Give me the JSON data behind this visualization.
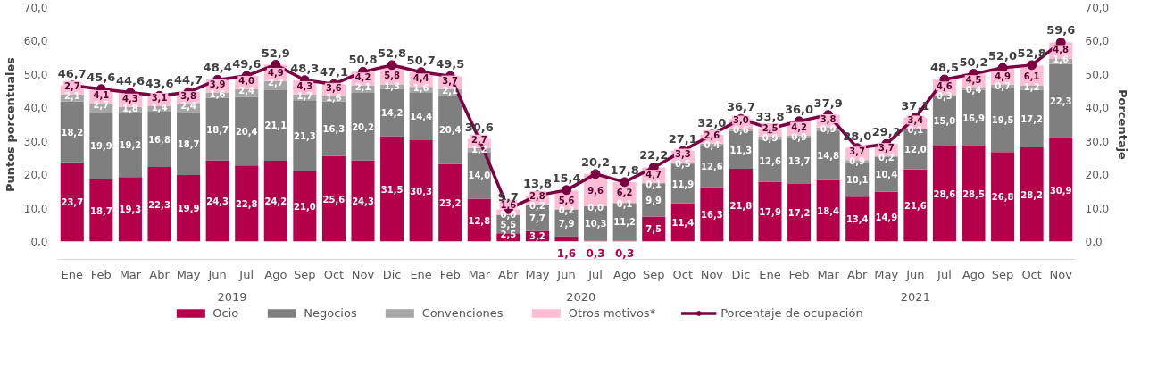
{
  "chart_data": {
    "type": "bar",
    "stacked": true,
    "data_labels": true,
    "legend": "bottom",
    "grid": false,
    "ylabel": "Puntos porcentuales",
    "y2label": "Porcentaje",
    "categories": [
      "Ene",
      "Feb",
      "Mar",
      "Abr",
      "May",
      "Jun",
      "Jul",
      "Ago",
      "Sep",
      "Oct",
      "Nov",
      "Dic",
      "Ene",
      "Feb",
      "Mar",
      "Abr",
      "May",
      "Jun",
      "Jul",
      "Ago",
      "Sep",
      "Oct",
      "Nov",
      "Dic",
      "Ene",
      "Feb",
      "Mar",
      "Abr",
      "May",
      "Jun",
      "Jul",
      "Ago",
      "Sep",
      "Oct",
      "Nov"
    ],
    "annotations": [
      "2019",
      "2020",
      "2021"
    ],
    "ylim": [
      0,
      70
    ],
    "yticks": [
      {
        "value": 0,
        "label": "0,0"
      },
      {
        "value": 10,
        "label": "10,0"
      },
      {
        "value": 20,
        "label": "20,0"
      },
      {
        "value": 30,
        "label": "30,0"
      },
      {
        "value": 40,
        "label": "40,0"
      },
      {
        "value": 50,
        "label": "50,0"
      },
      {
        "value": 60,
        "label": "60,0"
      },
      {
        "value": 70,
        "label": "70,0"
      }
    ],
    "y2lim": [
      0,
      70
    ],
    "y2ticks": [
      {
        "value": 0,
        "label": "0,0"
      },
      {
        "value": 10,
        "label": "10,0"
      },
      {
        "value": 20,
        "label": "20,0"
      },
      {
        "value": 30,
        "label": "30,0"
      },
      {
        "value": 40,
        "label": "40,0"
      },
      {
        "value": 50,
        "label": "50,0"
      },
      {
        "value": 60,
        "label": "60,0"
      },
      {
        "value": 70,
        "label": "70,0"
      }
    ],
    "series": [
      {
        "name": "Ocio",
        "color": "#b4004b",
        "values": [
          23.7,
          18.7,
          19.3,
          22.3,
          19.9,
          24.3,
          22.8,
          24.2,
          21.0,
          25.6,
          24.3,
          31.5,
          30.3,
          23.2,
          12.8,
          2.5,
          3.2,
          1.6,
          0.3,
          0.3,
          7.5,
          11.4,
          16.3,
          21.8,
          17.9,
          17.2,
          18.4,
          13.4,
          14.9,
          21.6,
          28.6,
          28.5,
          26.8,
          28.2,
          30.9
        ],
        "value_labels": [
          "23,7",
          "18,7",
          "19,3",
          "22,3",
          "19,9",
          "24,3",
          "22,8",
          "24,2",
          "21,0",
          "25,6",
          "24,3",
          "31,5",
          "30,3",
          "23,2",
          "12,8",
          "2,5",
          "3,2",
          "1,6",
          "0,3",
          "0,3",
          "7,5",
          "11,4",
          "16,3",
          "21,8",
          "17,9",
          "17,2",
          "18,4",
          "13,4",
          "14,9",
          "21,6",
          "28,6",
          "28,5",
          "26,8",
          "28,2",
          "30,9"
        ]
      },
      {
        "name": "Negocios",
        "color": "#7f7f7f",
        "values": [
          18.2,
          19.9,
          19.2,
          16.8,
          18.7,
          18.7,
          20.4,
          21.1,
          21.3,
          16.3,
          20.2,
          14.2,
          14.4,
          20.4,
          14.0,
          5.5,
          7.7,
          7.9,
          10.3,
          11.2,
          9.9,
          11.9,
          12.6,
          11.3,
          12.6,
          13.7,
          14.8,
          10.1,
          10.4,
          12.0,
          15.0,
          16.9,
          19.5,
          17.2,
          22.3
        ],
        "value_labels": [
          "18,2",
          "19,9",
          "19,2",
          "16,8",
          "18,7",
          "18,7",
          "20,4",
          "21,1",
          "21,3",
          "16,3",
          "20,2",
          "14,2",
          "14,4",
          "20,4",
          "14,0",
          "5,5",
          "7,7",
          "7,9",
          "10,3",
          "11,2",
          "9,9",
          "11,9",
          "12,6",
          "11,3",
          "12,6",
          "13,7",
          "14,8",
          "10,1",
          "10,4",
          "12,0",
          "15,0",
          "16,9",
          "19,5",
          "17,2",
          "22,3"
        ]
      },
      {
        "name": "Convenciones",
        "color": "#a6a6a6",
        "values": [
          2.1,
          2.7,
          1.8,
          1.4,
          2.4,
          1.6,
          2.4,
          2.7,
          1.7,
          1.6,
          2.1,
          1.3,
          1.6,
          2.1,
          1.2,
          0.0,
          0.2,
          0.2,
          0.0,
          0.1,
          0.1,
          0.5,
          0.4,
          0.6,
          0.9,
          0.9,
          0.9,
          0.9,
          0.2,
          0.1,
          0.3,
          0.4,
          0.7,
          1.2,
          1.6
        ],
        "value_labels": [
          "2,1",
          "2,7",
          "1,8",
          "1,4",
          "2,4",
          "1,6",
          "2,4",
          "2,7",
          "1,7",
          "1,6",
          "2,1",
          "1,3",
          "1,6",
          "2,1",
          "1,2",
          "0,0",
          "0,2",
          "0,2",
          "0,0",
          "0,1",
          "0,1",
          "0,5",
          "0,4",
          "0,6",
          "0,9",
          "0,9",
          "0,9",
          "0,9",
          "0,2",
          "0,1",
          "0,3",
          "0,4",
          "0,7",
          "1,2",
          "1,6"
        ]
      },
      {
        "name": "Otros motivos*",
        "color": "#ffbdd5",
        "values": [
          2.7,
          4.1,
          4.3,
          3.1,
          3.8,
          3.9,
          4.0,
          4.9,
          4.3,
          3.6,
          4.2,
          5.8,
          4.4,
          3.7,
          2.7,
          1.6,
          2.8,
          5.6,
          9.6,
          6.2,
          4.7,
          3.3,
          2.6,
          3.0,
          2.5,
          4.2,
          3.8,
          3.7,
          3.7,
          3.4,
          4.6,
          4.5,
          4.9,
          6.1,
          4.8
        ],
        "value_labels": [
          "2,7",
          "4,1",
          "4,3",
          "3,1",
          "3,8",
          "3,9",
          "4,0",
          "4,9",
          "4,3",
          "3,6",
          "4,2",
          "5,8",
          "4,4",
          "3,7",
          "2,7",
          "1,6",
          "2,8",
          "5,6",
          "9,6",
          "6,2",
          "4,7",
          "3,3",
          "2,6",
          "3,0",
          "2,5",
          "4,2",
          "3,8",
          "3,7",
          "3,7",
          "3,4",
          "4,6",
          "4,5",
          "4,9",
          "6,1",
          "4,8"
        ]
      },
      {
        "name": "Porcentaje de ocupación",
        "type": "line",
        "marker": "circle",
        "color": "#7b0041",
        "values": [
          46.7,
          45.6,
          44.6,
          43.6,
          44.7,
          48.4,
          49.6,
          52.9,
          48.3,
          47.1,
          50.8,
          52.8,
          50.7,
          49.5,
          30.6,
          9.7,
          13.8,
          15.4,
          20.2,
          17.8,
          22.2,
          27.1,
          32.0,
          36.7,
          33.8,
          36.0,
          37.9,
          28.0,
          29.2,
          37.1,
          48.5,
          50.2,
          52.0,
          52.8,
          59.6
        ],
        "value_labels": [
          "46,7",
          "45,6",
          "44,6",
          "43,6",
          "44,7",
          "48,4",
          "49,6",
          "52,9",
          "48,3",
          "47,1",
          "50,8",
          "52,8",
          "50,7",
          "49,5",
          "30,6",
          "9,7",
          "13,8",
          "15,4",
          "20,2",
          "17,8",
          "22,2",
          "27,1",
          "32,0",
          "36,7",
          "33,8",
          "36,0",
          "37,9",
          "28,0",
          "29,2",
          "37,1",
          "48,5",
          "50,2",
          "52,0",
          "52,8",
          "59,6"
        ]
      }
    ]
  }
}
